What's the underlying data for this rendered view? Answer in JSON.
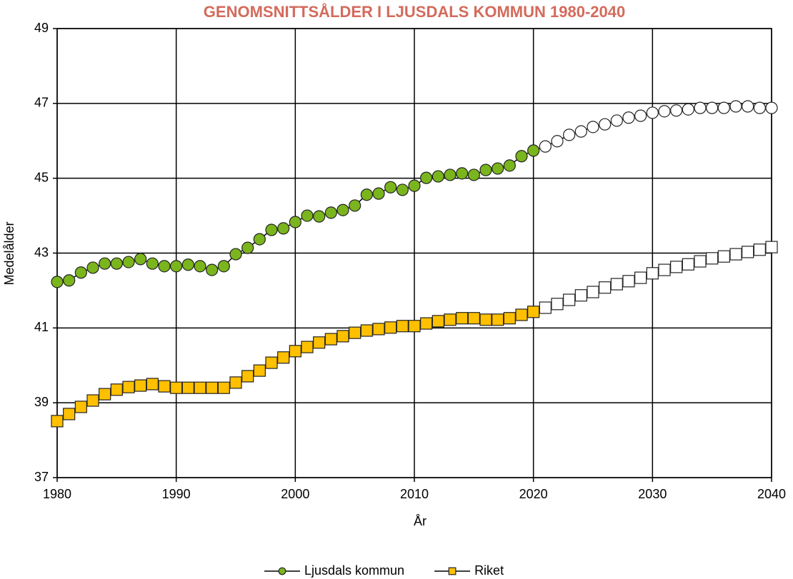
{
  "chart_data": {
    "type": "line",
    "title": "GENOMSNITTSÅLDER I LJUSDALS KOMMUN 1980-2040",
    "title_color": "#d36b5c",
    "x_label": "År",
    "y_label": "Medelålder",
    "x": [
      1980,
      1981,
      1982,
      1983,
      1984,
      1985,
      1986,
      1987,
      1988,
      1989,
      1990,
      1991,
      1992,
      1993,
      1994,
      1995,
      1996,
      1997,
      1998,
      1999,
      2000,
      2001,
      2002,
      2003,
      2004,
      2005,
      2006,
      2007,
      2008,
      2009,
      2010,
      2011,
      2012,
      2013,
      2014,
      2015,
      2016,
      2017,
      2018,
      2019,
      2020,
      2021,
      2022,
      2023,
      2024,
      2025,
      2026,
      2027,
      2028,
      2029,
      2030,
      2031,
      2032,
      2033,
      2034,
      2035,
      2036,
      2037,
      2038,
      2039,
      2040
    ],
    "xlim": [
      1980,
      2040
    ],
    "xticks": [
      1980,
      1990,
      2000,
      2010,
      2020,
      2030,
      2040
    ],
    "ylim": [
      37,
      49
    ],
    "yticks": [
      37,
      39,
      41,
      43,
      45,
      47,
      49
    ],
    "grid": true,
    "legend": "bottom",
    "projection_from": 2021,
    "projection_color": "#ffffff",
    "series": [
      {
        "name": "Ljusdals kommun",
        "color": "#7ab51d",
        "line_color": "#000000",
        "marker": "circle",
        "values": [
          42.23,
          42.27,
          42.48,
          42.61,
          42.72,
          42.72,
          42.76,
          42.84,
          42.72,
          42.65,
          42.65,
          42.69,
          42.65,
          42.55,
          42.65,
          42.97,
          43.14,
          43.37,
          43.62,
          43.66,
          43.83,
          44.0,
          43.98,
          44.08,
          44.15,
          44.27,
          44.56,
          44.59,
          44.76,
          44.69,
          44.8,
          45.01,
          45.05,
          45.09,
          45.13,
          45.09,
          45.22,
          45.26,
          45.34,
          45.59,
          45.74,
          45.85,
          45.99,
          46.16,
          46.25,
          46.37,
          46.44,
          46.54,
          46.62,
          46.67,
          46.75,
          46.79,
          46.81,
          46.84,
          46.88,
          46.88,
          46.88,
          46.92,
          46.92,
          46.88,
          46.88
        ]
      },
      {
        "name": "Riket",
        "color": "#ffc000",
        "line_color": "#000000",
        "marker": "square",
        "values": [
          38.51,
          38.7,
          38.89,
          39.06,
          39.23,
          39.35,
          39.42,
          39.46,
          39.5,
          39.44,
          39.4,
          39.4,
          39.4,
          39.4,
          39.4,
          39.54,
          39.71,
          39.86,
          40.07,
          40.21,
          40.38,
          40.49,
          40.61,
          40.7,
          40.78,
          40.87,
          40.93,
          40.97,
          41.01,
          41.05,
          41.05,
          41.12,
          41.18,
          41.22,
          41.26,
          41.26,
          41.22,
          41.22,
          41.26,
          41.35,
          41.43,
          41.54,
          41.64,
          41.75,
          41.87,
          41.96,
          42.08,
          42.17,
          42.25,
          42.34,
          42.46,
          42.55,
          42.63,
          42.7,
          42.78,
          42.86,
          42.91,
          42.97,
          43.03,
          43.09,
          43.16
        ]
      }
    ]
  }
}
